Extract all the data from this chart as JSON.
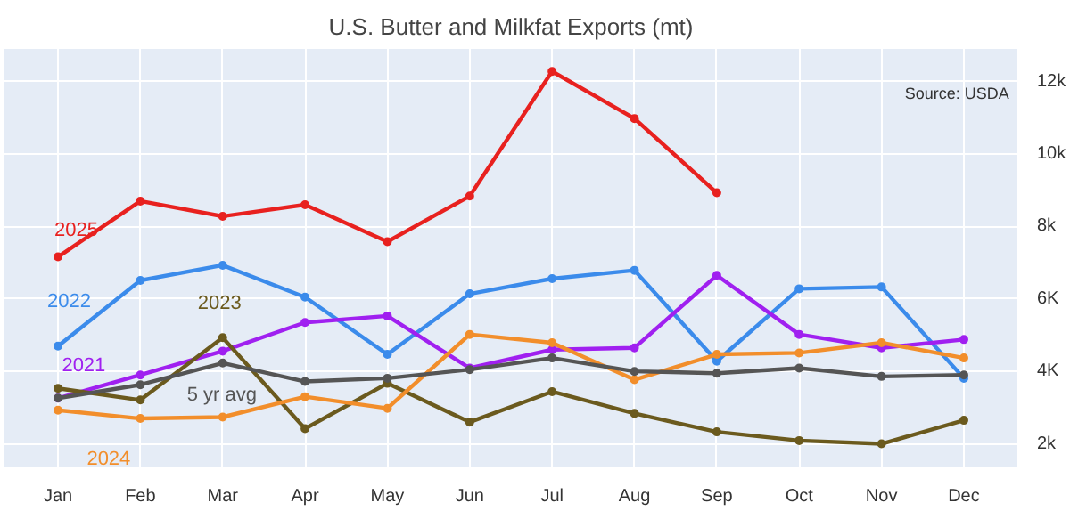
{
  "chart_data": {
    "type": "line",
    "title": "U.S. Butter and Milkfat Exports (mt)",
    "categories": [
      "Jan",
      "Feb",
      "Mar",
      "Apr",
      "May",
      "Jun",
      "Jul",
      "Aug",
      "Sep",
      "Oct",
      "Nov",
      "Dec"
    ],
    "series": [
      {
        "name": "2025",
        "color": "#e8211f",
        "values": [
          7160,
          8700,
          8280,
          8600,
          7580,
          8840,
          12280,
          10980,
          8930,
          null,
          null,
          null
        ]
      },
      {
        "name": "2022",
        "color": "#3b8beb",
        "values": [
          4700,
          6510,
          6930,
          6050,
          4470,
          6140,
          6560,
          6790,
          4280,
          6280,
          6330,
          3810
        ]
      },
      {
        "name": "2021",
        "color": "#a020f0",
        "values": [
          3260,
          3900,
          4560,
          5350,
          5530,
          4090,
          4600,
          4650,
          6650,
          5020,
          4650,
          4880
        ]
      },
      {
        "name": "2023",
        "color": "#6b5a1e",
        "values": [
          3530,
          3210,
          4930,
          2420,
          3670,
          2600,
          3440,
          2840,
          2330,
          2090,
          2000,
          2650
        ]
      },
      {
        "name": "2024",
        "color": "#f28e2b",
        "values": [
          2930,
          2700,
          2740,
          3300,
          2980,
          5020,
          4790,
          3770,
          4470,
          4510,
          4790,
          4370
        ]
      },
      {
        "name": "5 yr avg",
        "color": "#555555",
        "values": [
          3260,
          3630,
          4230,
          3720,
          3810,
          4050,
          4370,
          4000,
          3950,
          4090,
          3860,
          3900
        ]
      }
    ],
    "ylim": [
      1350,
      12900
    ],
    "yticks": [
      {
        "value": 2000,
        "label": "2k"
      },
      {
        "value": 4000,
        "label": "4K"
      },
      {
        "value": 6000,
        "label": "6K"
      },
      {
        "value": 8000,
        "label": "8k"
      },
      {
        "value": 10000,
        "label": "10k"
      },
      {
        "value": 12000,
        "label": "12k"
      }
    ],
    "annotations": [
      "Source: USDA"
    ],
    "grid": true,
    "marker": "circle",
    "line_style": "solid"
  }
}
